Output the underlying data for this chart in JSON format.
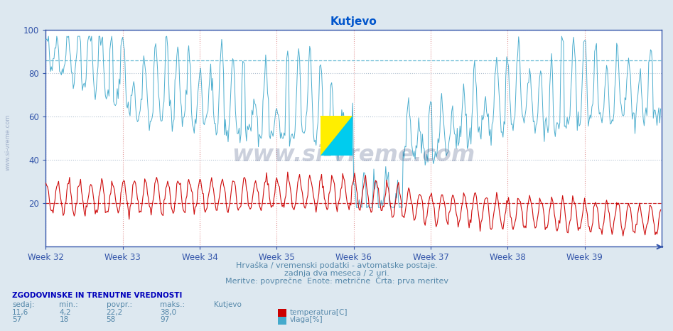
{
  "title": "Kutjevo",
  "title_color": "#0055cc",
  "background_color": "#dde8f0",
  "plot_bg_color": "#ffffff",
  "ylim": [
    0,
    100
  ],
  "yticks": [
    20,
    40,
    60,
    80,
    100
  ],
  "week_labels": [
    "Week 32",
    "Week 33",
    "Week 34",
    "Week 35",
    "Week 36",
    "Week 37",
    "Week 38",
    "Week 39"
  ],
  "week_positions": [
    0,
    84,
    168,
    252,
    336,
    420,
    504,
    588
  ],
  "n_points": 672,
  "hline_red": 20,
  "hline_cyan": 86,
  "temp_color": "#cc0000",
  "humidity_color": "#44aacc",
  "subtitle1": "Hrvaška / vremenski podatki - avtomatske postaje.",
  "subtitle2": "zadnja dva meseca / 2 uri.",
  "subtitle3": "Meritve: povprečne  Enote: metrične  Črta: prva meritev",
  "subtitle_color": "#5588aa",
  "footer_title": "ZGODOVINSKE IN TRENUTNE VREDNOSTI",
  "footer_color": "#0000bb",
  "col_headers": [
    "sedaj:",
    "min.:",
    "povpr.:",
    "maks.:",
    "Kutjevo"
  ],
  "temp_row": [
    "11,6",
    "4,2",
    "22,2",
    "38,0"
  ],
  "humidity_row": [
    "57",
    "18",
    "58",
    "97"
  ],
  "temp_label": "temperatura[C]",
  "humidity_label": "vlaga[%]",
  "watermark": "www.si-vreme.com",
  "watermark_color": "#334477",
  "watermark_alpha": 0.25,
  "grid_color_v_dot": "#dd8888",
  "grid_color_h_dot": "#aabbcc",
  "axis_color": "#3355aa",
  "tick_color": "#3355aa",
  "left_watermark": "www.si-vreme.com",
  "left_wm_color": "#8899bb"
}
